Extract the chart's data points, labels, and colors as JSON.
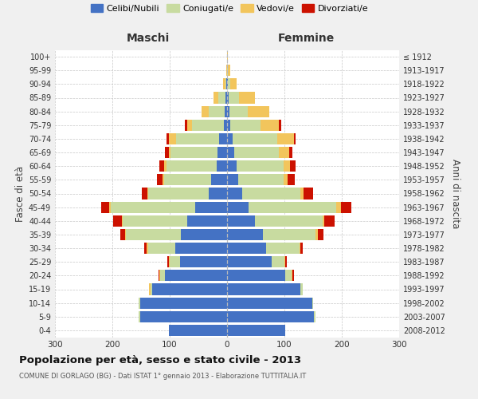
{
  "age_groups": [
    "0-4",
    "5-9",
    "10-14",
    "15-19",
    "20-24",
    "25-29",
    "30-34",
    "35-39",
    "40-44",
    "45-49",
    "50-54",
    "55-59",
    "60-64",
    "65-69",
    "70-74",
    "75-79",
    "80-84",
    "85-89",
    "90-94",
    "95-99",
    "100+"
  ],
  "birth_years": [
    "2008-2012",
    "2003-2007",
    "1998-2002",
    "1993-1997",
    "1988-1992",
    "1983-1987",
    "1978-1982",
    "1973-1977",
    "1968-1972",
    "1963-1967",
    "1958-1962",
    "1953-1957",
    "1948-1952",
    "1943-1947",
    "1938-1942",
    "1933-1937",
    "1928-1932",
    "1923-1927",
    "1918-1922",
    "1913-1917",
    "≤ 1912"
  ],
  "colors": {
    "celibe": "#4472C4",
    "coniugato": "#c8dba0",
    "vedovo": "#f2c55c",
    "divorziato": "#cc1100"
  },
  "maschi_celibe": [
    102,
    152,
    152,
    130,
    108,
    82,
    90,
    80,
    70,
    55,
    32,
    28,
    18,
    16,
    14,
    6,
    4,
    3,
    1,
    0,
    0
  ],
  "maschi_coniugato": [
    0,
    2,
    2,
    4,
    8,
    18,
    48,
    96,
    112,
    148,
    105,
    82,
    88,
    82,
    75,
    55,
    28,
    12,
    2,
    0,
    0
  ],
  "maschi_vedovo": [
    0,
    0,
    0,
    2,
    2,
    2,
    2,
    2,
    2,
    2,
    2,
    2,
    4,
    4,
    12,
    8,
    12,
    8,
    4,
    1,
    0
  ],
  "maschi_divorziato": [
    0,
    0,
    0,
    0,
    2,
    2,
    4,
    8,
    14,
    14,
    10,
    10,
    8,
    6,
    4,
    4,
    0,
    0,
    0,
    0,
    0
  ],
  "femmine_nubile": [
    102,
    152,
    148,
    128,
    102,
    78,
    68,
    62,
    48,
    38,
    26,
    20,
    16,
    12,
    10,
    6,
    4,
    3,
    1,
    0,
    0
  ],
  "femmine_coniugata": [
    0,
    2,
    2,
    4,
    10,
    22,
    58,
    92,
    118,
    152,
    102,
    78,
    82,
    78,
    78,
    52,
    32,
    18,
    4,
    1,
    0
  ],
  "femmine_vedova": [
    0,
    0,
    0,
    0,
    2,
    2,
    2,
    4,
    4,
    8,
    6,
    8,
    12,
    18,
    28,
    32,
    38,
    28,
    12,
    4,
    1
  ],
  "femmine_divorziata": [
    0,
    0,
    0,
    0,
    2,
    2,
    4,
    10,
    18,
    18,
    16,
    12,
    10,
    6,
    4,
    4,
    0,
    0,
    0,
    0,
    0
  ],
  "xlim": 300,
  "title": "Popolazione per età, sesso e stato civile - 2013",
  "subtitle": "COMUNE DI GORLAGO (BG) - Dati ISTAT 1° gennaio 2013 - Elaborazione TUTTITALIA.IT",
  "ylabel_left": "Fasce di età",
  "ylabel_right": "Anni di nascita",
  "legend_labels": [
    "Celibi/Nubili",
    "Coniugati/e",
    "Vedovi/e",
    "Divorziati/e"
  ],
  "maschi_label": "Maschi",
  "femmine_label": "Femmine",
  "bg_color": "#f0f0f0",
  "plot_bg": "#ffffff",
  "grid_color": "#c8c8c8"
}
